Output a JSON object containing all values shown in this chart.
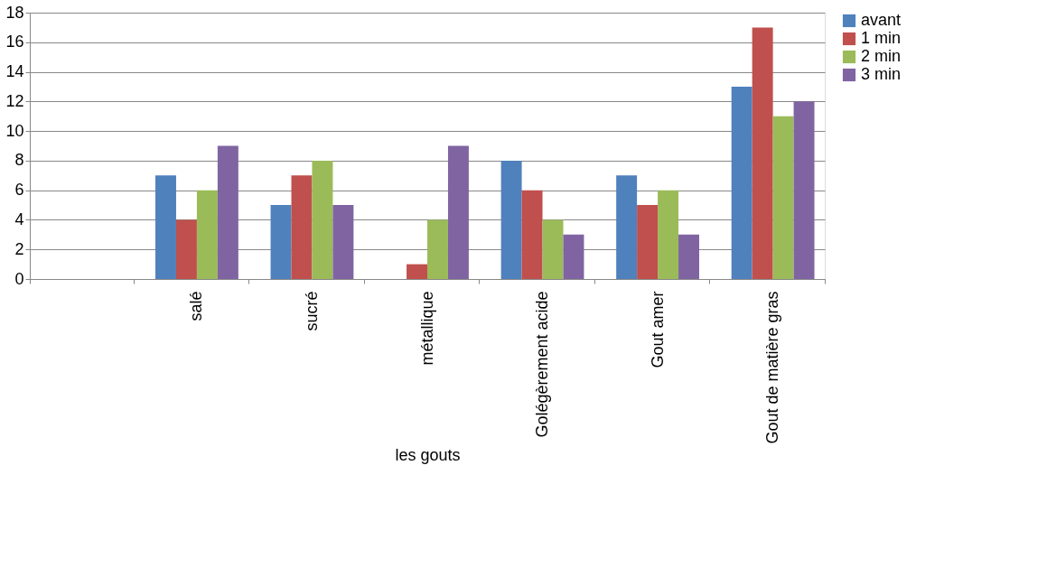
{
  "chart_data": {
    "type": "bar",
    "categories": [
      null,
      "salé",
      "sucré",
      "métallique",
      "Golégèrement acide",
      "Gout amer",
      "Gout de matière gras"
    ],
    "xlabel": "les gouts",
    "series": [
      {
        "name": "avant",
        "color": "#4f81bd",
        "values": [
          null,
          7,
          5,
          0,
          8,
          7,
          13
        ]
      },
      {
        "name": "1 min",
        "color": "#c0504d",
        "values": [
          null,
          4,
          7,
          1,
          6,
          5,
          17
        ]
      },
      {
        "name": "2 min",
        "color": "#9bbb59",
        "values": [
          null,
          6,
          8,
          4,
          4,
          6,
          11
        ]
      },
      {
        "name": "3 min",
        "color": "#8064a2",
        "values": [
          null,
          9,
          5,
          9,
          3,
          3,
          12
        ]
      }
    ],
    "ylim": [
      0,
      18
    ],
    "yticks": [
      0,
      2,
      4,
      6,
      8,
      10,
      12,
      14,
      16,
      18
    ],
    "grid": "y",
    "legend": "right"
  }
}
